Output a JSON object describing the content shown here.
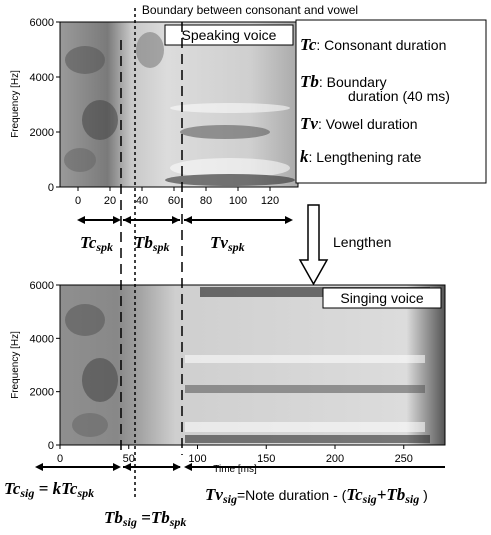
{
  "header": {
    "title": "Boundary between consonant and vowel"
  },
  "top_panel": {
    "label": "Speaking voice",
    "y_axis_label": "Frequency [Hz]",
    "yticks": [
      0,
      2000,
      4000,
      6000
    ],
    "xticks": [
      0,
      20,
      40,
      60,
      80,
      100,
      120
    ]
  },
  "bottom_panel": {
    "label": "Singing voice",
    "y_axis_label": "Frequency [Hz]",
    "x_axis_label": "Time [ms]",
    "yticks": [
      0,
      2000,
      4000,
      6000
    ],
    "xticks": [
      0,
      50,
      100,
      150,
      200,
      250
    ]
  },
  "legend": [
    {
      "symbol": "Tc",
      "text": ": Consonant duration"
    },
    {
      "symbol": "Tb",
      "text": ": Boundary",
      "text2": "duration (40 ms)"
    },
    {
      "symbol": "Tv",
      "text": ": Vowel duration"
    },
    {
      "symbol": "k",
      "text": ": Lengthening rate"
    }
  ],
  "arrow_label": "Lengthen",
  "top_intervals": [
    {
      "symbol": "Tc",
      "sub": "spk"
    },
    {
      "symbol": "Tb",
      "sub": "spk"
    },
    {
      "symbol": "Tv",
      "sub": "spk"
    }
  ],
  "bottom_formulas": {
    "tc": [
      "Tc",
      "sig",
      " = ",
      "kTc",
      "spk"
    ],
    "tb": [
      "Tb",
      "sig",
      " =",
      "Tb",
      "spk"
    ],
    "tv": [
      "Tv",
      "sig",
      "=Note duration - (",
      "Tc",
      "sig",
      "+",
      "Tb",
      "sig",
      " )"
    ]
  }
}
